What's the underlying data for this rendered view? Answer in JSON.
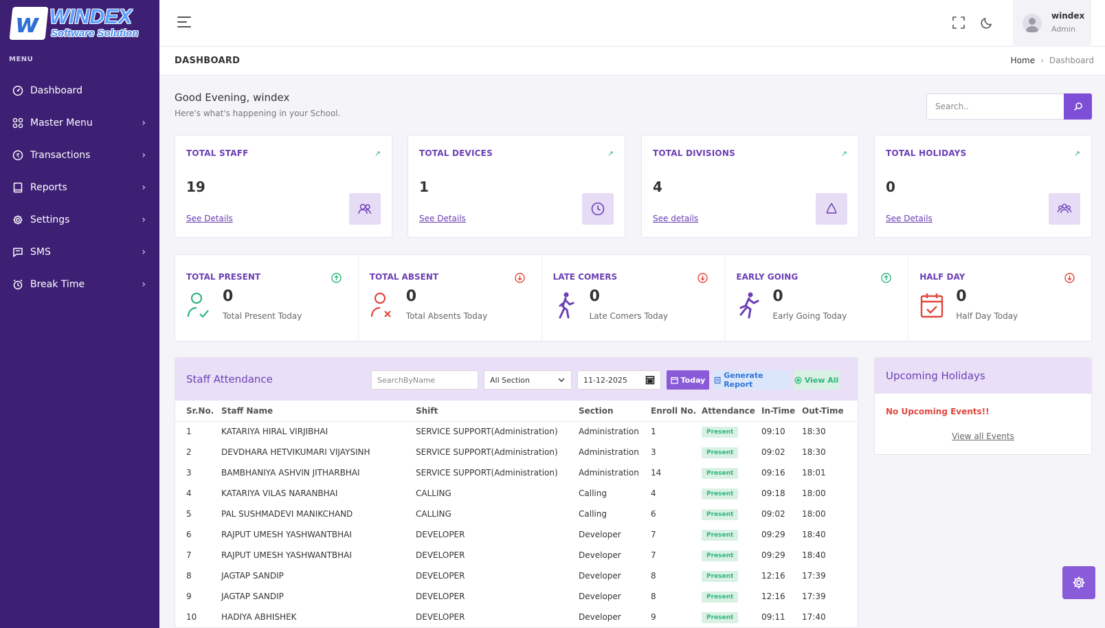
{
  "brand": {
    "title": "WINDEX",
    "subtitle": "Software Solution",
    "mark": "w"
  },
  "sidebar": {
    "menu_label": "MENU",
    "items": [
      {
        "label": "Dashboard",
        "icon": "dashboard-icon"
      },
      {
        "label": "Master Menu",
        "icon": "grid-icon"
      },
      {
        "label": "Transactions",
        "icon": "currency-icon"
      },
      {
        "label": "Reports",
        "icon": "book-icon"
      },
      {
        "label": "Settings",
        "icon": "gear-icon"
      },
      {
        "label": "SMS",
        "icon": "message-icon"
      },
      {
        "label": "Break Time",
        "icon": "alarm-icon"
      }
    ]
  },
  "topbar": {
    "user_name": "windex",
    "user_role": "Admin"
  },
  "page": {
    "title": "DASHBOARD",
    "breadcrumb": {
      "home": "Home",
      "current": "Dashboard"
    }
  },
  "greeting": {
    "title": "Good Evening, windex",
    "subtitle": "Here's what's happening in your School."
  },
  "search": {
    "placeholder": "Search.."
  },
  "stats": [
    {
      "title": "TOTAL STAFF",
      "value": "19",
      "link": "See Details",
      "icon": "users-icon"
    },
    {
      "title": "TOTAL DEVICES",
      "value": "1",
      "link": "See Details",
      "icon": "clock-icon"
    },
    {
      "title": "TOTAL DIVISIONS",
      "value": "4",
      "link": "See details",
      "icon": "recycle-icon"
    },
    {
      "title": "TOTAL HOLIDAYS",
      "value": "0",
      "link": "See Details",
      "icon": "group-icon"
    }
  ],
  "summary": [
    {
      "title": "TOTAL PRESENT",
      "value": "0",
      "subtitle": "Total Present Today",
      "status": "up"
    },
    {
      "title": "TOTAL ABSENT",
      "value": "0",
      "subtitle": "Total Absents Today",
      "status": "down"
    },
    {
      "title": "LATE COMERS",
      "value": "0",
      "subtitle": "Late Comers Today",
      "status": "down"
    },
    {
      "title": "EARLY GOING",
      "value": "0",
      "subtitle": "Early Going Today",
      "status": "up"
    },
    {
      "title": "HALF DAY",
      "value": "0",
      "subtitle": "Half Day Today",
      "status": "down"
    }
  ],
  "attendance": {
    "title": "Staff Attendance",
    "search_placeholder": "SearchByName",
    "section_value": "All Section",
    "date_value": "11-12-2025",
    "today_label": "Today",
    "report_label": "Generate Report",
    "viewall_label": "View All",
    "columns": [
      "Sr.No.",
      "Staff Name",
      "Shift",
      "Section",
      "Enroll No.",
      "Attendance",
      "In-Time",
      "Out-Time"
    ],
    "rows": [
      [
        "1",
        "KATARIYA HIRAL VIRJIBHAI",
        "SERVICE SUPPORT(Administration)",
        "Administration",
        "1",
        "Present",
        "09:10",
        "18:30"
      ],
      [
        "2",
        "DEVDHARA HETVIKUMARI VIJAYSINH",
        "SERVICE SUPPORT(Administration)",
        "Administration",
        "3",
        "Present",
        "09:02",
        "18:30"
      ],
      [
        "3",
        "BAMBHANIYA ASHVIN JITHARBHAI",
        "SERVICE SUPPORT(Administration)",
        "Administration",
        "14",
        "Present",
        "09:16",
        "18:01"
      ],
      [
        "4",
        "KATARIYA VILAS NARANBHAI",
        "CALLING",
        "Calling",
        "4",
        "Present",
        "09:18",
        "18:00"
      ],
      [
        "5",
        "PAL SUSHMADEVI MANIKCHAND",
        "CALLING",
        "Calling",
        "6",
        "Present",
        "09:02",
        "18:00"
      ],
      [
        "6",
        "RAJPUT UMESH YASHWANTBHAI",
        "DEVELOPER",
        "Developer",
        "7",
        "Present",
        "09:29",
        "18:40"
      ],
      [
        "7",
        "RAJPUT UMESH YASHWANTBHAI",
        "DEVELOPER",
        "Developer",
        "7",
        "Present",
        "09:29",
        "18:40"
      ],
      [
        "8",
        "JAGTAP SANDIP",
        "DEVELOPER",
        "Developer",
        "8",
        "Present",
        "12:16",
        "17:39"
      ],
      [
        "9",
        "JAGTAP SANDIP",
        "DEVELOPER",
        "Developer",
        "8",
        "Present",
        "12:16",
        "17:39"
      ],
      [
        "10",
        "HADIYA ABHISHEK",
        "DEVELOPER",
        "Developer",
        "9",
        "Present",
        "09:11",
        "17:40"
      ]
    ]
  },
  "holidays": {
    "title": "Upcoming Holidays",
    "empty_text": "No Upcoming Events!!",
    "link": "View all Events"
  },
  "colors": {
    "sidebar": "#3d1f73",
    "accent": "#7e4fd6",
    "success": "#2eb67d",
    "danger": "#e0463c",
    "header_tint": "#e9e0f7"
  }
}
